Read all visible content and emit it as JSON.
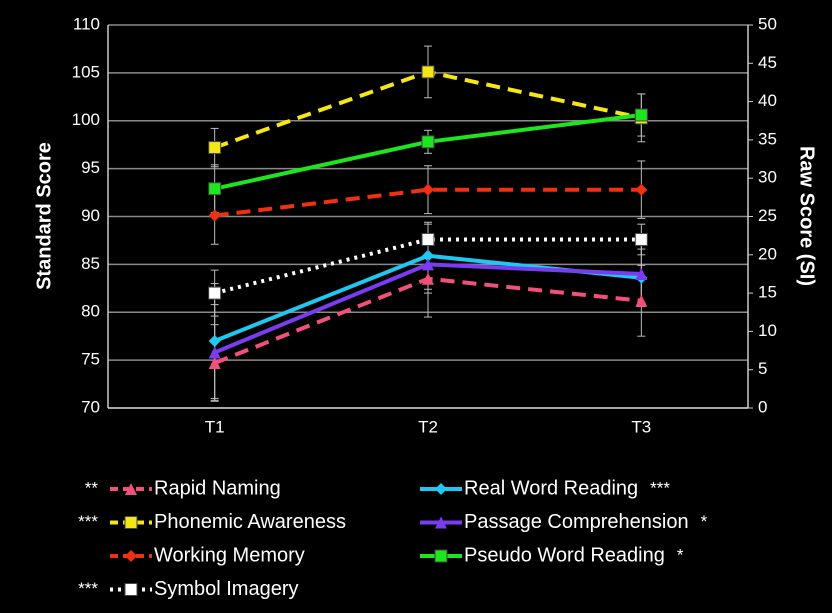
{
  "chart_data": {
    "type": "line",
    "ylabel": "Standard Score",
    "y2label": "Raw Score (SI)",
    "categories": [
      "T1",
      "T2",
      "T3"
    ],
    "ylim": [
      70,
      110
    ],
    "yticks": [
      70,
      75,
      80,
      85,
      90,
      95,
      100,
      105,
      110
    ],
    "y2lim": [
      0,
      50
    ],
    "y2ticks": [
      0,
      5,
      10,
      15,
      20,
      25,
      30,
      35,
      40,
      45,
      50
    ],
    "grid": true,
    "series": [
      {
        "name": "Rapid Naming",
        "significance": "**",
        "color": "#f0507a",
        "marker": "triangle",
        "dash": "dashed",
        "values": [
          74.7,
          83.5,
          81.2
        ],
        "errors": [
          4,
          4,
          3.7
        ]
      },
      {
        "name": "Phonemic Awareness",
        "significance": "***",
        "color": "#f5e616",
        "marker": "square",
        "dash": "dashed",
        "values": [
          97.2,
          105.1,
          100.3
        ],
        "errors": [
          2,
          2.7,
          2.5
        ]
      },
      {
        "name": "Working Memory",
        "color": "#f03010",
        "marker": "diamond",
        "dash": "dashed",
        "values": [
          90.1,
          92.8,
          92.8
        ],
        "errors": [
          3,
          2.5,
          3
        ]
      },
      {
        "name": "Symbol Imagery",
        "significance": "***",
        "color": "#ffffff",
        "marker": "square",
        "dash": "dotted",
        "axis": "y2",
        "values": [
          15,
          22,
          22
        ],
        "errors": [
          3,
          2,
          2
        ]
      },
      {
        "name": "Real Word Reading",
        "significance": "***",
        "color": "#1ec8f0",
        "marker": "diamond",
        "dash": "solid",
        "values": [
          77,
          85.9,
          83.6
        ],
        "errors": [
          6,
          3.5,
          3
        ]
      },
      {
        "name": "Passage Comprehension",
        "significance": "*",
        "color": "#7a3cf0",
        "marker": "triangle",
        "dash": "solid",
        "values": [
          75.8,
          85,
          84
        ],
        "errors": [
          5,
          3,
          3
        ]
      },
      {
        "name": "Pseudo Word Reading",
        "significance": "*",
        "color": "#1ee61e",
        "marker": "square",
        "dash": "solid",
        "values": [
          92.9,
          97.8,
          100.6
        ],
        "errors": [
          2.5,
          1.2,
          2.2
        ]
      }
    ]
  }
}
